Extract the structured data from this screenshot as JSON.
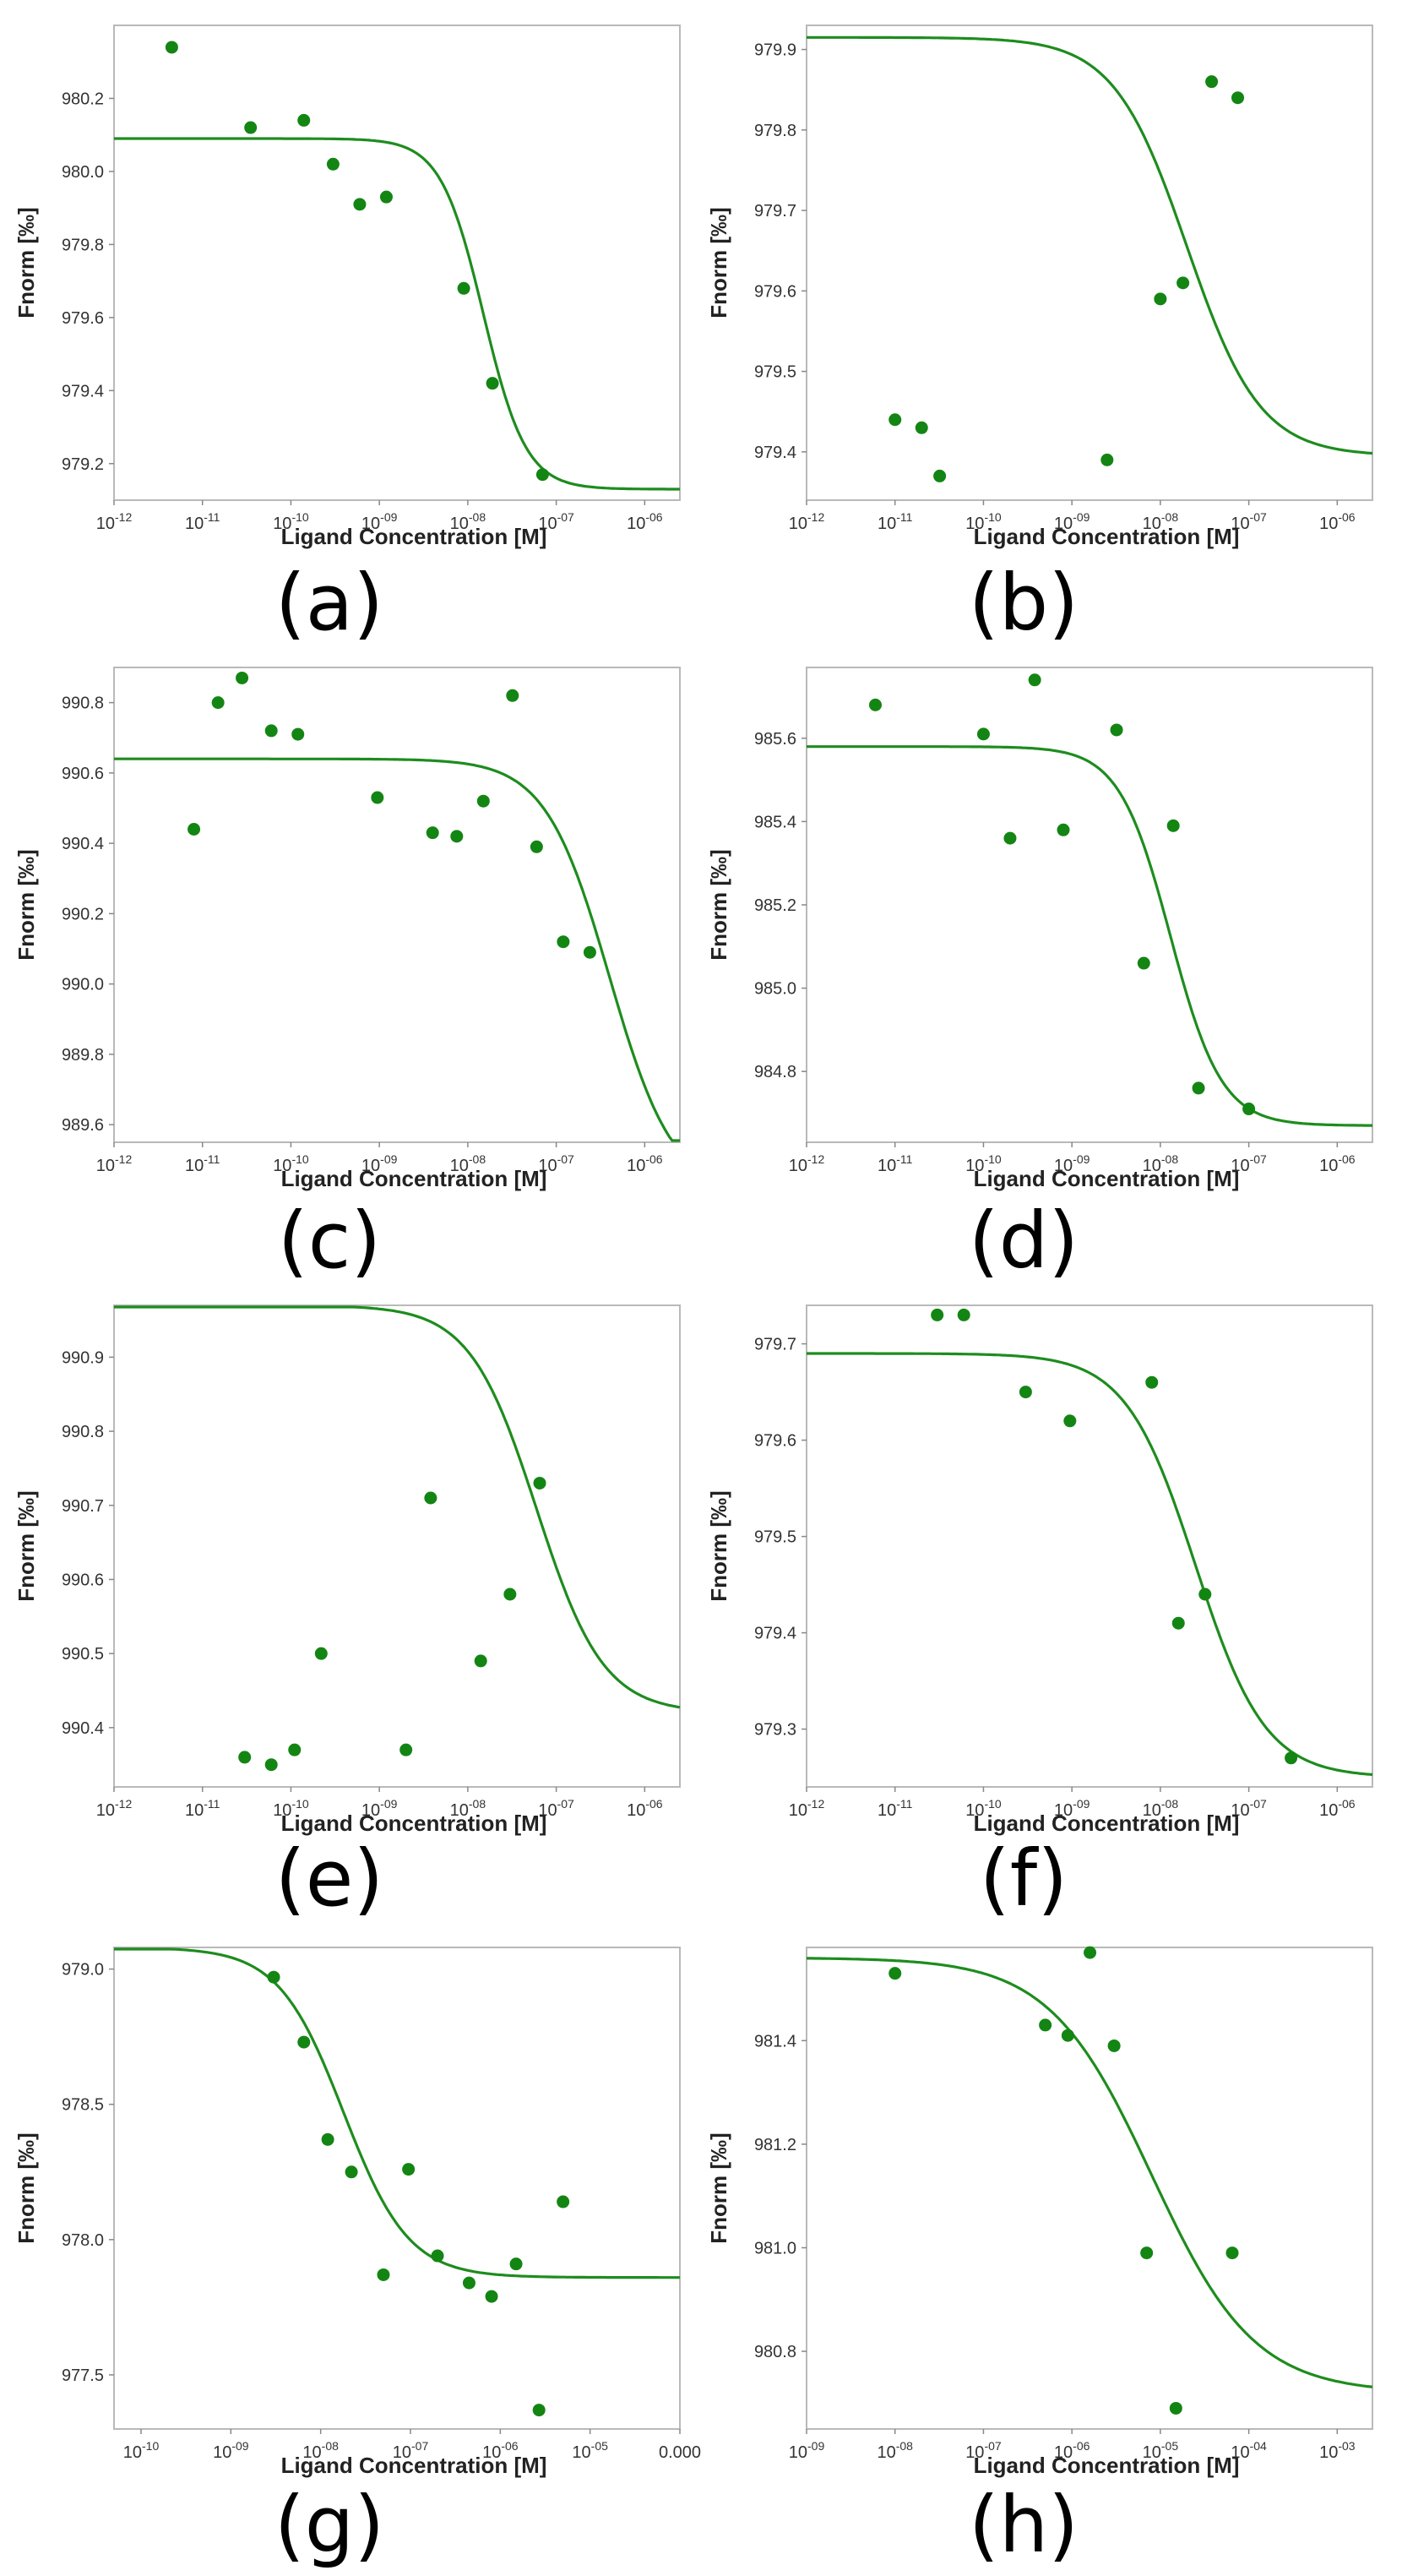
{
  "chart_data": [
    {
      "type": "scatter",
      "panel": "(a)",
      "xlabel": "Ligand Concentration [M]",
      "ylabel": "Fnorm [‰]",
      "x_scale": "log",
      "xlim": [
        1e-12,
        2.5e-06
      ],
      "ylim": [
        979.1,
        980.4
      ],
      "x_ticks": [
        1e-12,
        1e-11,
        1e-10,
        1e-09,
        1e-08,
        1e-07,
        1e-06
      ],
      "y_ticks": [
        979.2,
        979.4,
        979.6,
        979.8,
        980.0,
        980.2
      ],
      "points": [
        {
          "x": 4.5e-12,
          "y": 980.34
        },
        {
          "x": 3.5e-11,
          "y": 980.12
        },
        {
          "x": 1.4e-10,
          "y": 980.14
        },
        {
          "x": 3e-10,
          "y": 980.02
        },
        {
          "x": 6e-10,
          "y": 979.91
        },
        {
          "x": 1.2e-09,
          "y": 979.93
        },
        {
          "x": 9e-09,
          "y": 979.68
        },
        {
          "x": 1.9e-08,
          "y": 979.42
        },
        {
          "x": 7e-08,
          "y": 979.17
        }
      ],
      "fit": {
        "top": 980.09,
        "bottom": 979.13,
        "ec50": 1.5e-08,
        "hill": 1.8
      }
    },
    {
      "type": "scatter",
      "panel": "(b)",
      "xlabel": "Ligand Concentration [M]",
      "ylabel": "Fnorm [‰]",
      "x_scale": "log",
      "xlim": [
        1e-12,
        2.5e-06
      ],
      "ylim": [
        979.34,
        979.93
      ],
      "x_ticks": [
        1e-12,
        1e-11,
        1e-10,
        1e-09,
        1e-08,
        1e-07,
        1e-06
      ],
      "y_ticks": [
        979.4,
        979.5,
        979.6,
        979.7,
        979.8,
        979.9
      ],
      "points": [
        {
          "x": 1e-11,
          "y": 979.44
        },
        {
          "x": 2e-11,
          "y": 979.43
        },
        {
          "x": 3.2e-11,
          "y": 979.37
        },
        {
          "x": 2.5e-09,
          "y": 979.39
        },
        {
          "x": 1e-08,
          "y": 979.59
        },
        {
          "x": 1.8e-08,
          "y": 979.61
        },
        {
          "x": 3.8e-08,
          "y": 979.86
        },
        {
          "x": 7.5e-08,
          "y": 979.84
        }
      ],
      "fit": {
        "top": 979.915,
        "bottom": 979.395,
        "ec50": 2e-08,
        "hill": 1.05
      }
    },
    {
      "type": "scatter",
      "panel": "(c)",
      "xlabel": "Ligand Concentration [M]",
      "ylabel": "Fnorm [‰]",
      "x_scale": "log",
      "xlim": [
        1e-12,
        2.5e-06
      ],
      "ylim": [
        989.55,
        990.9
      ],
      "x_ticks": [
        1e-12,
        1e-11,
        1e-10,
        1e-09,
        1e-08,
        1e-07,
        1e-06
      ],
      "y_ticks": [
        989.6,
        989.8,
        990.0,
        990.2,
        990.4,
        990.6,
        990.8
      ],
      "points": [
        {
          "x": 8e-12,
          "y": 990.44
        },
        {
          "x": 1.5e-11,
          "y": 990.8
        },
        {
          "x": 2.8e-11,
          "y": 990.87
        },
        {
          "x": 6e-11,
          "y": 990.72
        },
        {
          "x": 1.2e-10,
          "y": 990.71
        },
        {
          "x": 9.5e-10,
          "y": 990.53
        },
        {
          "x": 4e-09,
          "y": 990.43
        },
        {
          "x": 7.5e-09,
          "y": 990.42
        },
        {
          "x": 1.5e-08,
          "y": 990.52
        },
        {
          "x": 3.2e-08,
          "y": 990.82
        },
        {
          "x": 6e-08,
          "y": 990.39
        },
        {
          "x": 1.2e-07,
          "y": 990.12
        },
        {
          "x": 2.4e-07,
          "y": 990.09
        }
      ],
      "fit": {
        "top": 990.64,
        "bottom": 989.4,
        "ec50": 4e-07,
        "hill": 1.2
      }
    },
    {
      "type": "scatter",
      "panel": "(d)",
      "xlabel": "Ligand Concentration [M]",
      "ylabel": "Fnorm [‰]",
      "x_scale": "log",
      "xlim": [
        1e-12,
        2.5e-06
      ],
      "ylim": [
        984.63,
        985.77
      ],
      "x_ticks": [
        1e-12,
        1e-11,
        1e-10,
        1e-09,
        1e-08,
        1e-07,
        1e-06
      ],
      "y_ticks": [
        984.8,
        985.0,
        985.2,
        985.4,
        985.6
      ],
      "points": [
        {
          "x": 6e-12,
          "y": 985.68
        },
        {
          "x": 1e-10,
          "y": 985.61
        },
        {
          "x": 2e-10,
          "y": 985.36
        },
        {
          "x": 3.8e-10,
          "y": 985.74
        },
        {
          "x": 8e-10,
          "y": 985.38
        },
        {
          "x": 3.2e-09,
          "y": 985.62
        },
        {
          "x": 6.5e-09,
          "y": 985.06
        },
        {
          "x": 1.4e-08,
          "y": 985.39
        },
        {
          "x": 2.7e-08,
          "y": 984.76
        },
        {
          "x": 1e-07,
          "y": 984.71
        }
      ],
      "fit": {
        "top": 985.58,
        "bottom": 984.67,
        "ec50": 1.3e-08,
        "hill": 1.5
      }
    },
    {
      "type": "scatter",
      "panel": "(e)",
      "xlabel": "Ligand Concentration [M]",
      "ylabel": "Fnorm [‰]",
      "x_scale": "log",
      "xlim": [
        1e-12,
        2.5e-06
      ],
      "ylim": [
        990.32,
        990.97
      ],
      "x_ticks": [
        1e-12,
        1e-11,
        1e-10,
        1e-09,
        1e-08,
        1e-07,
        1e-06
      ],
      "y_ticks": [
        990.4,
        990.5,
        990.6,
        990.7,
        990.8,
        990.9
      ],
      "points": [
        {
          "x": 3e-11,
          "y": 990.36
        },
        {
          "x": 6e-11,
          "y": 990.35
        },
        {
          "x": 1.1e-10,
          "y": 990.37
        },
        {
          "x": 2.2e-10,
          "y": 990.5
        },
        {
          "x": 2e-09,
          "y": 990.37
        },
        {
          "x": 3.8e-09,
          "y": 990.71
        },
        {
          "x": 1.4e-08,
          "y": 990.49
        },
        {
          "x": 3e-08,
          "y": 990.58
        },
        {
          "x": 6.5e-08,
          "y": 990.73
        }
      ],
      "fit": {
        "top": 990.97,
        "bottom": 990.42,
        "ec50": 6e-08,
        "hill": 1.15
      }
    },
    {
      "type": "scatter",
      "panel": "(f)",
      "xlabel": "Ligand Concentration [M]",
      "ylabel": "Fnorm [‰]",
      "x_scale": "log",
      "xlim": [
        1e-12,
        2.5e-06
      ],
      "ylim": [
        979.24,
        979.74
      ],
      "x_ticks": [
        1e-12,
        1e-11,
        1e-10,
        1e-09,
        1e-08,
        1e-07,
        1e-06
      ],
      "y_ticks": [
        979.3,
        979.4,
        979.5,
        979.6,
        979.7
      ],
      "points": [
        {
          "x": 3e-11,
          "y": 979.73
        },
        {
          "x": 6e-11,
          "y": 979.73
        },
        {
          "x": 3e-10,
          "y": 979.65
        },
        {
          "x": 9.5e-10,
          "y": 979.62
        },
        {
          "x": 8e-09,
          "y": 979.66
        },
        {
          "x": 1.6e-08,
          "y": 979.41
        },
        {
          "x": 3.2e-08,
          "y": 979.44
        },
        {
          "x": 3e-07,
          "y": 979.27
        }
      ],
      "fit": {
        "top": 979.69,
        "bottom": 979.25,
        "ec50": 2.5e-08,
        "hill": 1.1
      }
    },
    {
      "type": "scatter",
      "panel": "(g)",
      "xlabel": "Ligand Concentration [M]",
      "ylabel": "Fnorm [‰]",
      "x_scale": "log",
      "xlim": [
        5e-11,
        0.0001
      ],
      "ylim": [
        977.3,
        979.08
      ],
      "x_ticks": [
        1e-10,
        1e-09,
        1e-08,
        1e-07,
        1e-06,
        1e-05,
        0.0001
      ],
      "x_tick_labels_last": "0.000",
      "y_ticks": [
        977.5,
        978.0,
        978.5,
        979.0
      ],
      "points": [
        {
          "x": 3e-09,
          "y": 978.97
        },
        {
          "x": 6.5e-09,
          "y": 978.73
        },
        {
          "x": 1.2e-08,
          "y": 978.37
        },
        {
          "x": 2.2e-08,
          "y": 978.25
        },
        {
          "x": 5e-08,
          "y": 977.87
        },
        {
          "x": 9.5e-08,
          "y": 978.26
        },
        {
          "x": 2e-07,
          "y": 977.94
        },
        {
          "x": 4.5e-07,
          "y": 977.84
        },
        {
          "x": 8e-07,
          "y": 977.79
        },
        {
          "x": 1.5e-06,
          "y": 977.91
        },
        {
          "x": 2.7e-06,
          "y": 977.37
        },
        {
          "x": 5e-06,
          "y": 978.14
        }
      ],
      "fit": {
        "top": 979.08,
        "bottom": 977.86,
        "ec50": 1.8e-08,
        "hill": 1.2
      }
    },
    {
      "type": "scatter",
      "panel": "(h)",
      "xlabel": "Ligand Concentration [M]",
      "ylabel": "Fnorm [‰]",
      "x_scale": "log",
      "xlim": [
        1e-09,
        0.0025
      ],
      "ylim": [
        980.65,
        981.58
      ],
      "x_ticks": [
        1e-09,
        1e-08,
        1e-07,
        1e-06,
        1e-05,
        0.0001,
        0.001
      ],
      "y_ticks": [
        980.8,
        981.0,
        981.2,
        981.4
      ],
      "points": [
        {
          "x": 1e-08,
          "y": 981.53
        },
        {
          "x": 5e-07,
          "y": 981.43
        },
        {
          "x": 9e-07,
          "y": 981.41
        },
        {
          "x": 1.6e-06,
          "y": 981.57
        },
        {
          "x": 3e-06,
          "y": 981.39
        },
        {
          "x": 7e-06,
          "y": 980.99
        },
        {
          "x": 1.5e-05,
          "y": 980.69
        },
        {
          "x": 6.5e-05,
          "y": 980.99
        }
      ],
      "fit": {
        "top": 981.56,
        "bottom": 980.72,
        "ec50": 8e-06,
        "hill": 0.75
      }
    }
  ]
}
